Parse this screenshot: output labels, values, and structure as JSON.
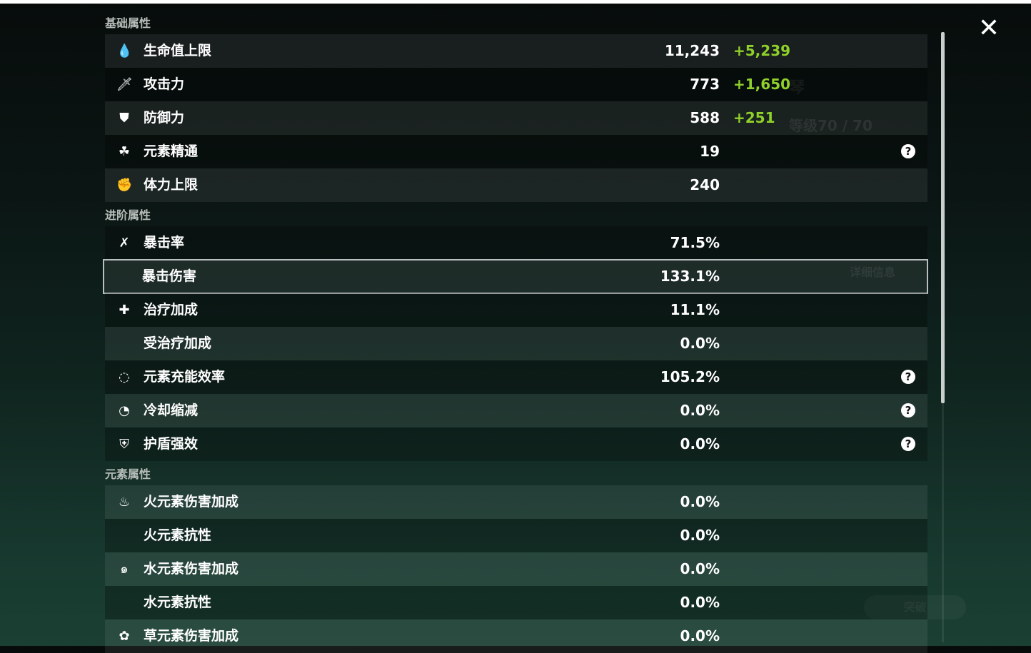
{
  "sections": [
    {
      "title": "基础属性",
      "rows": [
        {
          "icon": "hp-drop-icon",
          "glyph": "💧",
          "label": "生命值上限",
          "value": "11,243",
          "bonus": "+5,239",
          "band": "light"
        },
        {
          "icon": "sword-icon",
          "glyph": "🗡",
          "label": "攻击力",
          "value": "773",
          "bonus": "+1,650",
          "band": "dark"
        },
        {
          "icon": "shield-icon",
          "glyph": "⛊",
          "label": "防御力",
          "value": "588",
          "bonus": "+251",
          "band": "light"
        },
        {
          "icon": "elemental-mastery-icon",
          "glyph": "☘",
          "label": "元素精通",
          "value": "19",
          "help": true,
          "band": "dark"
        },
        {
          "icon": "stamina-icon",
          "glyph": "✊",
          "label": "体力上限",
          "value": "240",
          "band": "light"
        }
      ]
    },
    {
      "title": "进阶属性",
      "rows": [
        {
          "icon": "crit-rate-icon",
          "glyph": "✗",
          "label": "暴击率",
          "value": "71.5%",
          "band": "dark"
        },
        {
          "icon": "crit-dmg-icon",
          "glyph": "",
          "label": "暴击伤害",
          "value": "133.1%",
          "band": "light",
          "selected": true
        },
        {
          "icon": "healing-cross-icon",
          "glyph": "✚",
          "label": "治疗加成",
          "value": "11.1%",
          "band": "dark"
        },
        {
          "icon": "",
          "glyph": "",
          "label": "受治疗加成",
          "value": "0.0%",
          "band": "light"
        },
        {
          "icon": "energy-recharge-icon",
          "glyph": "◌",
          "label": "元素充能效率",
          "value": "105.2%",
          "help": true,
          "band": "dark"
        },
        {
          "icon": "cooldown-icon",
          "glyph": "◔",
          "label": "冷却缩减",
          "value": "0.0%",
          "help": true,
          "band": "light"
        },
        {
          "icon": "shield-strength-icon",
          "glyph": "⛨",
          "label": "护盾强效",
          "value": "0.0%",
          "help": true,
          "band": "dark"
        }
      ]
    },
    {
      "title": "元素属性",
      "rows": [
        {
          "icon": "pyro-icon",
          "glyph": "♨",
          "label": "火元素伤害加成",
          "value": "0.0%",
          "band": "light"
        },
        {
          "icon": "",
          "glyph": "",
          "label": "火元素抗性",
          "value": "0.0%",
          "band": "dark"
        },
        {
          "icon": "hydro-icon",
          "glyph": "๑",
          "label": "水元素伤害加成",
          "value": "0.0%",
          "band": "light"
        },
        {
          "icon": "",
          "glyph": "",
          "label": "水元素抗性",
          "value": "0.0%",
          "band": "dark"
        },
        {
          "icon": "dendro-icon",
          "glyph": "✿",
          "label": "草元素伤害加成",
          "value": "0.0%",
          "band": "light"
        }
      ]
    }
  ],
  "help_glyph": "?",
  "close_glyph": "✕",
  "colors": {
    "bonus": "#8fd12a",
    "highlight_border": "#b9c0bd"
  },
  "background": {
    "character_name": "琴",
    "level": "等级70 / 70",
    "details_button": "详细信息",
    "ascend_button": "突破"
  }
}
